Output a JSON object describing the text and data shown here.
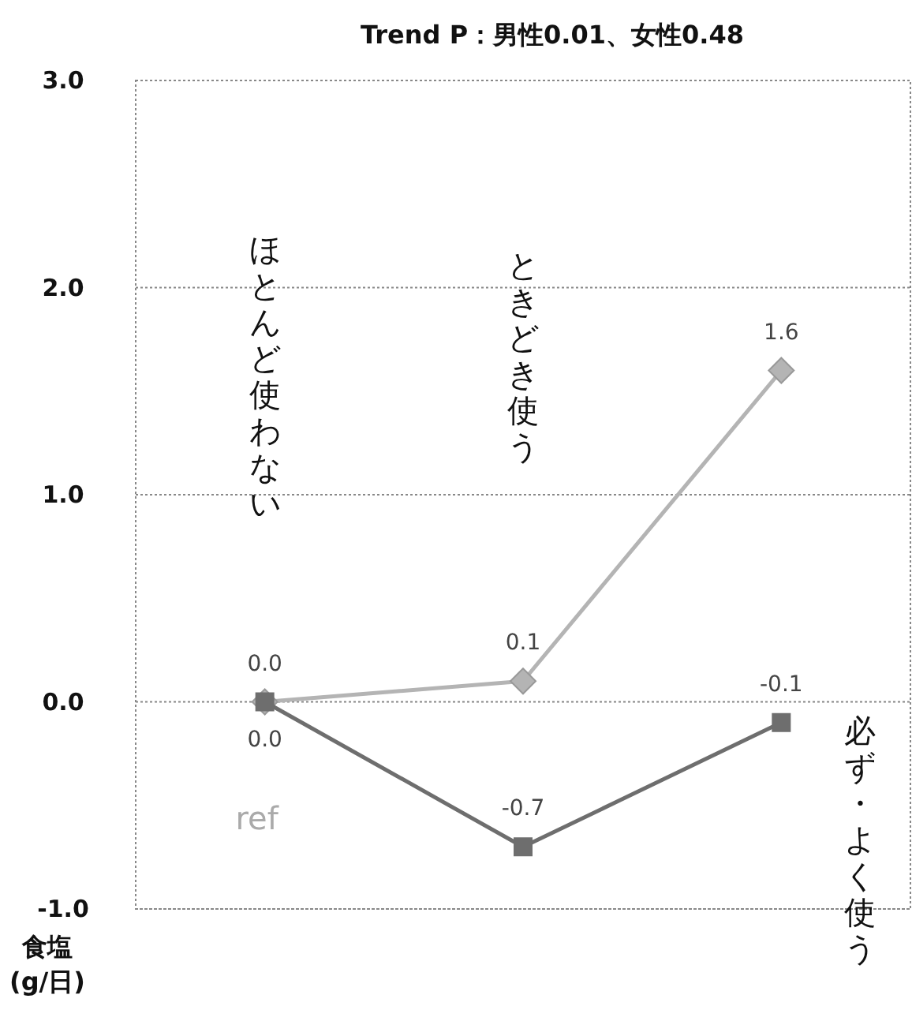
{
  "chart_data": {
    "type": "line",
    "title": "Trend P：男性0.01、女性0.48",
    "ylabel": "食塩 (g/日)",
    "categories": [
      "ほとんど使わない",
      "ときどき使う",
      "必ず・よく使う"
    ],
    "series": [
      {
        "color": "#b4b4b4",
        "marker": "diamond",
        "values": [
          0.0,
          0.1,
          1.6
        ],
        "value_labels": [
          "0.0",
          "0.1",
          "1.6"
        ]
      },
      {
        "color": "#6e6e6e",
        "marker": "square",
        "values": [
          0.0,
          -0.7,
          -0.1
        ],
        "value_labels": [
          "0.0",
          "-0.7",
          "-0.1"
        ]
      }
    ],
    "annotations": [
      "ref"
    ],
    "ylim": [
      -1.0,
      3.0
    ],
    "yticks": [
      {
        "value": -1,
        "label": "-1.0"
      },
      {
        "value": 0,
        "label": "0.0"
      },
      {
        "value": 1,
        "label": "1.0"
      },
      {
        "value": 2,
        "label": "2.0"
      },
      {
        "value": 3,
        "label": "3.0"
      }
    ],
    "grid": "y",
    "line_style": "solid"
  }
}
